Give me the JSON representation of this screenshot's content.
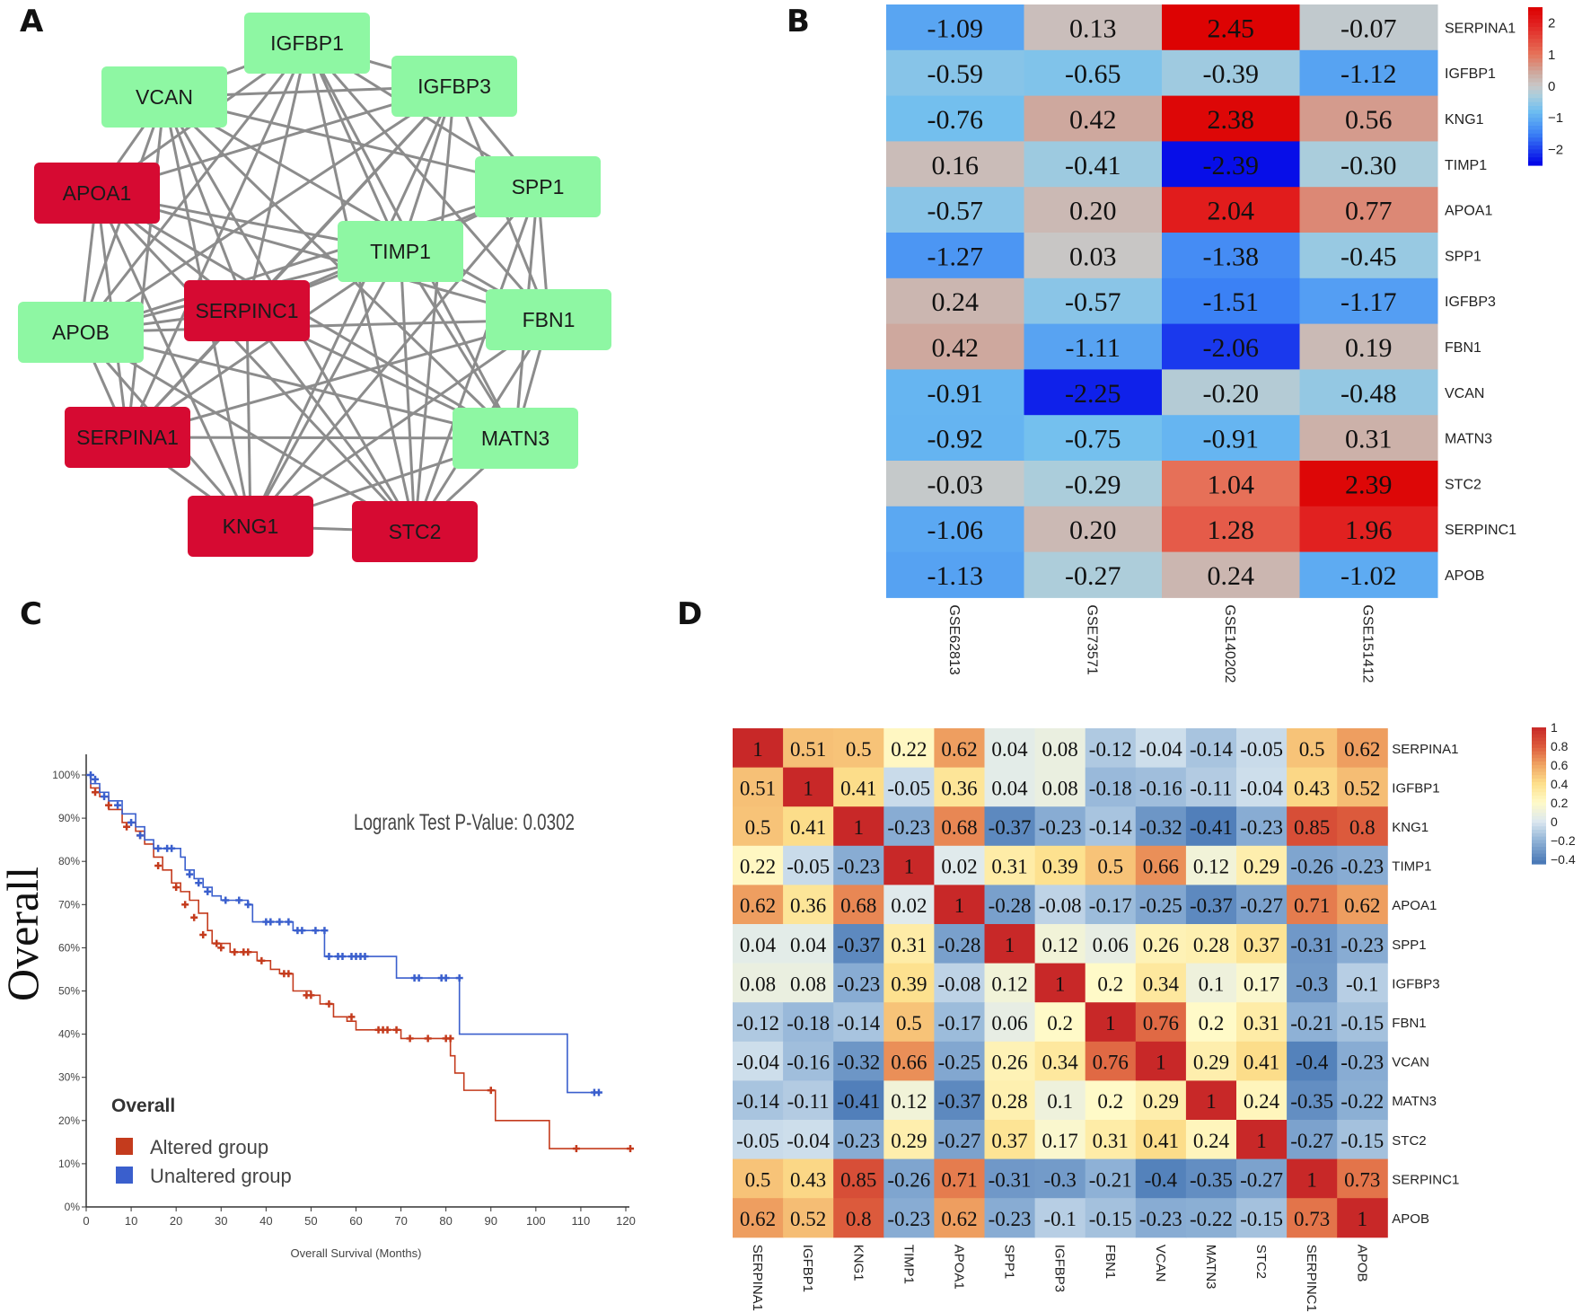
{
  "panels": {
    "a": "A",
    "b": "B",
    "c": "C",
    "d": "D"
  },
  "colors": {
    "up_node": "#d60a32",
    "down_node": "#8ef7a3",
    "edge": "#8c8c8c",
    "altered": "#c43b1d",
    "unaltered": "#3a5fcd"
  },
  "chart_data": [
    {
      "type": "network",
      "panel": "A",
      "nodes": [
        {
          "id": "IGFBP1",
          "group": "down"
        },
        {
          "id": "VCAN",
          "group": "down"
        },
        {
          "id": "IGFBP3",
          "group": "down"
        },
        {
          "id": "APOA1",
          "group": "up"
        },
        {
          "id": "SPP1",
          "group": "down"
        },
        {
          "id": "TIMP1",
          "group": "down"
        },
        {
          "id": "SERPINC1",
          "group": "up"
        },
        {
          "id": "APOB",
          "group": "down"
        },
        {
          "id": "FBN1",
          "group": "down"
        },
        {
          "id": "SERPINA1",
          "group": "up"
        },
        {
          "id": "MATN3",
          "group": "down"
        },
        {
          "id": "KNG1",
          "group": "up"
        },
        {
          "id": "STC2",
          "group": "up"
        }
      ],
      "edges": "densely connected (near-complete graph)"
    },
    {
      "type": "heatmap",
      "panel": "B",
      "rows": [
        "SERPINA1",
        "IGFBP1",
        "KNG1",
        "TIMP1",
        "APOA1",
        "SPP1",
        "IGFBP3",
        "FBN1",
        "VCAN",
        "MATN3",
        "STC2",
        "SERPINC1",
        "APOB"
      ],
      "columns": [
        "GSE62813",
        "GSE73571",
        "GSE140202",
        "GSE151412"
      ],
      "values": [
        [
          "-1.09",
          "0.13",
          "2.45",
          "-0.07"
        ],
        [
          "-0.59",
          "-0.65",
          "-0.39",
          "-1.12"
        ],
        [
          "-0.76",
          "0.42",
          "2.38",
          "0.56"
        ],
        [
          "0.16",
          "-0.41",
          "-2.39",
          "-0.30"
        ],
        [
          "-0.57",
          "0.20",
          "2.04",
          "0.77"
        ],
        [
          "-1.27",
          "0.03",
          "-1.38",
          "-0.45"
        ],
        [
          "0.24",
          "-0.57",
          "-1.51",
          "-1.17"
        ],
        [
          "0.42",
          "-1.11",
          "-2.06",
          "0.19"
        ],
        [
          "-0.91",
          "-2.25",
          "-0.20",
          "-0.48"
        ],
        [
          "-0.92",
          "-0.75",
          "-0.91",
          "0.31"
        ],
        [
          "-0.03",
          "-0.29",
          "1.04",
          "2.39"
        ],
        [
          "-1.06",
          "0.20",
          "1.28",
          "1.96"
        ],
        [
          "-1.13",
          "-0.27",
          "0.24",
          "-1.02"
        ]
      ],
      "colorbar": {
        "ticks": [
          "2",
          "1",
          "0",
          "−1",
          "−2"
        ],
        "range": [
          -2.5,
          2.5
        ]
      }
    },
    {
      "type": "line",
      "panel": "C",
      "title": "Overall",
      "ylabel": "Overall",
      "xlabel": "Overall Survival (Months)",
      "annotation": "Logrank Test P-Value: 0.0302",
      "xlim": [
        0,
        120
      ],
      "ylim": [
        0,
        100
      ],
      "xticks": [
        "0",
        "10",
        "20",
        "30",
        "40",
        "50",
        "60",
        "70",
        "80",
        "90",
        "100",
        "110",
        "120"
      ],
      "yticks": [
        "0%",
        "10%",
        "20%",
        "30%",
        "40%",
        "50%",
        "60%",
        "70%",
        "80%",
        "90%",
        "100%"
      ],
      "legend": {
        "title": "Overall",
        "position": "bottom-left",
        "items": [
          "Altered group",
          "Unaltered group"
        ]
      },
      "series": [
        {
          "name": "Altered group",
          "steps": [
            [
              0,
              100
            ],
            [
              1,
              97
            ],
            [
              3,
              95
            ],
            [
              5,
              92
            ],
            [
              8,
              89
            ],
            [
              11,
              87
            ],
            [
              13,
              84
            ],
            [
              15,
              81
            ],
            [
              17,
              78
            ],
            [
              19,
              75
            ],
            [
              21,
              73
            ],
            [
              23,
              71
            ],
            [
              25,
              68
            ],
            [
              27,
              64
            ],
            [
              28,
              61
            ],
            [
              32,
              59
            ],
            [
              38,
              57
            ],
            [
              41,
              55
            ],
            [
              43,
              54
            ],
            [
              46,
              50
            ],
            [
              50,
              49
            ],
            [
              52,
              47
            ],
            [
              55,
              44
            ],
            [
              58,
              43
            ],
            [
              60,
              41
            ],
            [
              70,
              39
            ],
            [
              81,
              35
            ],
            [
              82,
              31
            ],
            [
              84,
              27
            ],
            [
              91,
              20
            ],
            [
              103,
              13.5
            ],
            [
              121,
              13.5
            ]
          ],
          "censor": [
            [
              2,
              96
            ],
            [
              5,
              93
            ],
            [
              9,
              88
            ],
            [
              12,
              86
            ],
            [
              16,
              79
            ],
            [
              20,
              74
            ],
            [
              22,
              70
            ],
            [
              24,
              67
            ],
            [
              26,
              63
            ],
            [
              29,
              61
            ],
            [
              30,
              60
            ],
            [
              33,
              59
            ],
            [
              35,
              59
            ],
            [
              36,
              59
            ],
            [
              39,
              57
            ],
            [
              44,
              54
            ],
            [
              45,
              54
            ],
            [
              49,
              49
            ],
            [
              50,
              49
            ],
            [
              54,
              47
            ],
            [
              59,
              44
            ],
            [
              65,
              41
            ],
            [
              66,
              41
            ],
            [
              67,
              41
            ],
            [
              69,
              41
            ],
            [
              72,
              39
            ],
            [
              76,
              39
            ],
            [
              80,
              39
            ],
            [
              81,
              39
            ],
            [
              90,
              27
            ],
            [
              109,
              13.5
            ],
            [
              121,
              13.5
            ]
          ]
        },
        {
          "name": "Unaltered group",
          "steps": [
            [
              0,
              100
            ],
            [
              1,
              98
            ],
            [
              3,
              96
            ],
            [
              5,
              94
            ],
            [
              8,
              91
            ],
            [
              11,
              88
            ],
            [
              13,
              85
            ],
            [
              15,
              83
            ],
            [
              20,
              83
            ],
            [
              21,
              81
            ],
            [
              22,
              78
            ],
            [
              24,
              76
            ],
            [
              26,
              74
            ],
            [
              28,
              72
            ],
            [
              30,
              71
            ],
            [
              36,
              70
            ],
            [
              37,
              66
            ],
            [
              46,
              64
            ],
            [
              53,
              58
            ],
            [
              69,
              53
            ],
            [
              83,
              40
            ],
            [
              107,
              26.5
            ],
            [
              114,
              26.5
            ]
          ],
          "censor": [
            [
              1,
              100
            ],
            [
              2,
              99
            ],
            [
              4,
              95
            ],
            [
              7,
              93
            ],
            [
              10,
              89
            ],
            [
              12,
              86
            ],
            [
              16,
              83
            ],
            [
              18,
              83
            ],
            [
              19,
              83
            ],
            [
              23,
              77
            ],
            [
              25,
              75
            ],
            [
              27,
              73
            ],
            [
              31,
              71
            ],
            [
              34,
              71
            ],
            [
              36,
              70
            ],
            [
              40,
              66
            ],
            [
              41,
              66
            ],
            [
              43,
              66
            ],
            [
              45,
              66
            ],
            [
              47,
              64
            ],
            [
              48,
              64
            ],
            [
              51,
              64
            ],
            [
              53,
              64
            ],
            [
              54,
              58
            ],
            [
              56,
              58
            ],
            [
              57,
              58
            ],
            [
              59,
              58
            ],
            [
              60,
              58
            ],
            [
              61,
              58
            ],
            [
              62,
              58
            ],
            [
              73,
              53
            ],
            [
              74,
              53
            ],
            [
              79,
              53
            ],
            [
              80,
              53
            ],
            [
              83,
              53
            ],
            [
              113,
              26.5
            ],
            [
              114,
              26.5
            ]
          ]
        }
      ]
    },
    {
      "type": "heatmap",
      "panel": "D",
      "labels": [
        "SERPINA1",
        "IGFBP1",
        "KNG1",
        "TIMP1",
        "APOA1",
        "SPP1",
        "IGFBP3",
        "FBN1",
        "VCAN",
        "MATN3",
        "STC2",
        "SERPINC1",
        "APOB"
      ],
      "values": [
        [
          "1",
          "0.51",
          "0.5",
          "0.22",
          "0.62",
          "0.04",
          "0.08",
          "-0.12",
          "-0.04",
          "-0.14",
          "-0.05",
          "0.5",
          "0.62"
        ],
        [
          "0.51",
          "1",
          "0.41",
          "-0.05",
          "0.36",
          "0.04",
          "0.08",
          "-0.18",
          "-0.16",
          "-0.11",
          "-0.04",
          "0.43",
          "0.52"
        ],
        [
          "0.5",
          "0.41",
          "1",
          "-0.23",
          "0.68",
          "-0.37",
          "-0.23",
          "-0.14",
          "-0.32",
          "-0.41",
          "-0.23",
          "0.85",
          "0.8"
        ],
        [
          "0.22",
          "-0.05",
          "-0.23",
          "1",
          "0.02",
          "0.31",
          "0.39",
          "0.5",
          "0.66",
          "0.12",
          "0.29",
          "-0.26",
          "-0.23"
        ],
        [
          "0.62",
          "0.36",
          "0.68",
          "0.02",
          "1",
          "-0.28",
          "-0.08",
          "-0.17",
          "-0.25",
          "-0.37",
          "-0.27",
          "0.71",
          "0.62"
        ],
        [
          "0.04",
          "0.04",
          "-0.37",
          "0.31",
          "-0.28",
          "1",
          "0.12",
          "0.06",
          "0.26",
          "0.28",
          "0.37",
          "-0.31",
          "-0.23"
        ],
        [
          "0.08",
          "0.08",
          "-0.23",
          "0.39",
          "-0.08",
          "0.12",
          "1",
          "0.2",
          "0.34",
          "0.1",
          "0.17",
          "-0.3",
          "-0.1"
        ],
        [
          "-0.12",
          "-0.18",
          "-0.14",
          "0.5",
          "-0.17",
          "0.06",
          "0.2",
          "1",
          "0.76",
          "0.2",
          "0.31",
          "-0.21",
          "-0.15"
        ],
        [
          "-0.04",
          "-0.16",
          "-0.32",
          "0.66",
          "-0.25",
          "0.26",
          "0.34",
          "0.76",
          "1",
          "0.29",
          "0.41",
          "-0.4",
          "-0.23"
        ],
        [
          "-0.14",
          "-0.11",
          "-0.41",
          "0.12",
          "-0.37",
          "0.28",
          "0.1",
          "0.2",
          "0.29",
          "1",
          "0.24",
          "-0.35",
          "-0.22"
        ],
        [
          "-0.05",
          "-0.04",
          "-0.23",
          "0.29",
          "-0.27",
          "0.37",
          "0.17",
          "0.31",
          "0.41",
          "0.24",
          "1",
          "-0.27",
          "-0.15"
        ],
        [
          "0.5",
          "0.43",
          "0.85",
          "-0.26",
          "0.71",
          "-0.31",
          "-0.3",
          "-0.21",
          "-0.4",
          "-0.35",
          "-0.27",
          "1",
          "0.73"
        ],
        [
          "0.62",
          "0.52",
          "0.8",
          "-0.23",
          "0.62",
          "-0.23",
          "-0.1",
          "-0.15",
          "-0.23",
          "-0.22",
          "-0.15",
          "0.73",
          "1"
        ]
      ],
      "colorbar": {
        "ticks": [
          "1",
          "0.8",
          "0.6",
          "0.4",
          "0.2",
          "0",
          "−0.2",
          "−0.4"
        ],
        "range": [
          -0.45,
          1
        ]
      }
    }
  ]
}
